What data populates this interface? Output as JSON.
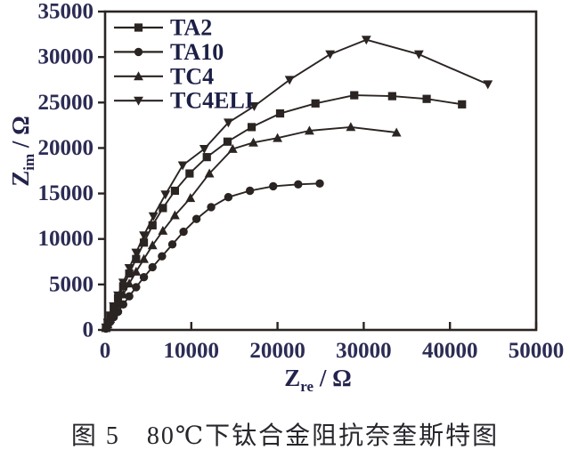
{
  "figure": {
    "caption": "图 5　80℃下钛合金阻抗奈奎斯特图"
  },
  "chart_data": {
    "type": "line",
    "title": "",
    "xlabel": "Z_re / Ω",
    "ylabel": "Z_im / Ω",
    "xlabel_parts": {
      "sym": "Z",
      "sub": "re",
      "unit": "/ Ω"
    },
    "ylabel_parts": {
      "sym": "Z",
      "sub": "im",
      "unit": "/ Ω"
    },
    "xlim": [
      0,
      50000
    ],
    "ylim": [
      0,
      35000
    ],
    "xticks": [
      0,
      10000,
      20000,
      30000,
      40000,
      50000
    ],
    "yticks": [
      0,
      5000,
      10000,
      15000,
      20000,
      25000,
      30000,
      35000
    ],
    "grid": false,
    "legend_position": "top-left-inside",
    "colors": {
      "line": "#2a2422",
      "tick_text": "#2c2c55",
      "legend_text": "#1c1f45",
      "axis_text": "#23234d",
      "caption_text": "#26262c"
    },
    "series": [
      {
        "name": "TA2",
        "marker": "square",
        "points": [
          [
            100,
            250
          ],
          [
            300,
            750
          ],
          [
            600,
            1500
          ],
          [
            1000,
            2400
          ],
          [
            1500,
            3500
          ],
          [
            2100,
            4800
          ],
          [
            2800,
            6200
          ],
          [
            3600,
            7800
          ],
          [
            4500,
            9600
          ],
          [
            5500,
            11500
          ],
          [
            6700,
            13400
          ],
          [
            8100,
            15300
          ],
          [
            9800,
            17200
          ],
          [
            11800,
            19000
          ],
          [
            14200,
            20700
          ],
          [
            17000,
            22300
          ],
          [
            20300,
            23800
          ],
          [
            24400,
            24900
          ],
          [
            28900,
            25800
          ],
          [
            33300,
            25700
          ],
          [
            37300,
            25400
          ],
          [
            41400,
            24800
          ]
        ]
      },
      {
        "name": "TA10",
        "marker": "circle",
        "points": [
          [
            100,
            150
          ],
          [
            300,
            450
          ],
          [
            600,
            900
          ],
          [
            1000,
            1400
          ],
          [
            1500,
            2000
          ],
          [
            2100,
            2800
          ],
          [
            2800,
            3700
          ],
          [
            3600,
            4700
          ],
          [
            4500,
            5800
          ],
          [
            5500,
            6900
          ],
          [
            6600,
            8100
          ],
          [
            7800,
            9400
          ],
          [
            9100,
            10800
          ],
          [
            10600,
            12200
          ],
          [
            12300,
            13500
          ],
          [
            14300,
            14600
          ],
          [
            16800,
            15300
          ],
          [
            19500,
            15800
          ],
          [
            22400,
            16000
          ],
          [
            24900,
            16100
          ]
        ]
      },
      {
        "name": "TC4",
        "marker": "triangle-up",
        "points": [
          [
            100,
            200
          ],
          [
            300,
            600
          ],
          [
            600,
            1200
          ],
          [
            1000,
            1950
          ],
          [
            1500,
            2850
          ],
          [
            2100,
            3900
          ],
          [
            2800,
            5100
          ],
          [
            3600,
            6400
          ],
          [
            4500,
            7800
          ],
          [
            5500,
            9300
          ],
          [
            6700,
            10900
          ],
          [
            8100,
            12600
          ],
          [
            9900,
            14500
          ],
          [
            12100,
            17200
          ],
          [
            14800,
            19900
          ],
          [
            17200,
            20600
          ],
          [
            20000,
            21100
          ],
          [
            23700,
            21900
          ],
          [
            28500,
            22300
          ],
          [
            33800,
            21700
          ]
        ]
      },
      {
        "name": "TC4ELI",
        "marker": "triangle-down",
        "points": [
          [
            100,
            270
          ],
          [
            300,
            800
          ],
          [
            600,
            1600
          ],
          [
            1000,
            2600
          ],
          [
            1500,
            3800
          ],
          [
            2100,
            5200
          ],
          [
            2800,
            6800
          ],
          [
            3600,
            8500
          ],
          [
            4500,
            10400
          ],
          [
            5600,
            12500
          ],
          [
            7000,
            14900
          ],
          [
            9000,
            18100
          ],
          [
            11500,
            19900
          ],
          [
            14300,
            22800
          ],
          [
            17300,
            24600
          ],
          [
            21400,
            27500
          ],
          [
            26100,
            30300
          ],
          [
            30300,
            31900
          ],
          [
            36400,
            30300
          ],
          [
            44400,
            27000
          ]
        ]
      }
    ]
  }
}
